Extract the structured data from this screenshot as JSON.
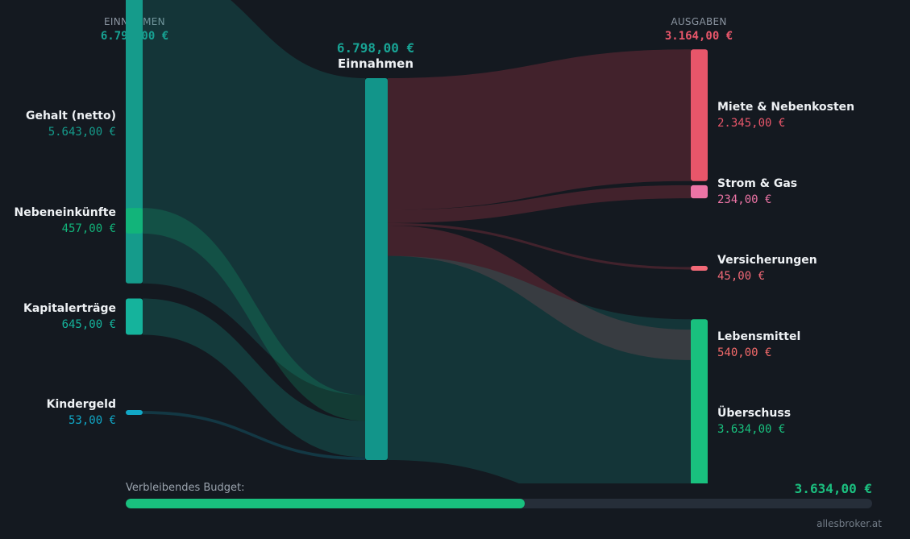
{
  "headers": {
    "income_caption": "EINNAHMEN",
    "income_total": "6.798,00 €",
    "expenses_caption": "AUSGABEN",
    "expenses_total": "3.164,00 €"
  },
  "center": {
    "amount": "6.798,00 €",
    "label": "Einnahmen"
  },
  "sources": [
    {
      "label": "Gehalt (netto)",
      "amount": "5.643,00 €",
      "value": 5643,
      "color": "#159b8b"
    },
    {
      "label": "Nebeneinkünfte",
      "amount": "457,00 €",
      "value": 457,
      "color": "#12b47a"
    },
    {
      "label": "Kapitalerträge",
      "amount": "645,00 €",
      "value": 645,
      "color": "#15b39c"
    },
    {
      "label": "Kindergeld",
      "amount": "53,00 €",
      "value": 53,
      "color": "#11a7c6"
    }
  ],
  "targets": [
    {
      "label": "Miete & Nebenkosten",
      "amount": "2.345,00 €",
      "value": 2345,
      "color": "#e8566a"
    },
    {
      "label": "Strom & Gas",
      "amount": "234,00 €",
      "value": 234,
      "color": "#ec74a5"
    },
    {
      "label": "Versicherungen",
      "amount": "45,00 €",
      "value": 45,
      "color": "#f26977"
    },
    {
      "label": "Lebensmittel",
      "amount": "540,00 €",
      "value": 540,
      "color": "#f36a6a"
    },
    {
      "label": "Überschuss",
      "amount": "3.634,00 €",
      "value": 3634,
      "color": "#19c07e"
    }
  ],
  "budget": {
    "label": "Verbleibendes Budget:",
    "amount": "3.634,00 €",
    "fraction": 0.5346
  },
  "watermark": "allesbroker.at",
  "chart_data": {
    "type": "sankey",
    "nodes": [
      "Gehalt (netto)",
      "Nebeneinkünfte",
      "Kapitalerträge",
      "Kindergeld",
      "Einnahmen",
      "Miete & Nebenkosten",
      "Strom & Gas",
      "Versicherungen",
      "Lebensmittel",
      "Überschuss"
    ],
    "links": [
      {
        "source": "Gehalt (netto)",
        "target": "Einnahmen",
        "value": 5643
      },
      {
        "source": "Nebeneinkünfte",
        "target": "Einnahmen",
        "value": 457
      },
      {
        "source": "Kapitalerträge",
        "target": "Einnahmen",
        "value": 645
      },
      {
        "source": "Kindergeld",
        "target": "Einnahmen",
        "value": 53
      },
      {
        "source": "Einnahmen",
        "target": "Miete & Nebenkosten",
        "value": 2345
      },
      {
        "source": "Einnahmen",
        "target": "Strom & Gas",
        "value": 234
      },
      {
        "source": "Einnahmen",
        "target": "Versicherungen",
        "value": 45
      },
      {
        "source": "Einnahmen",
        "target": "Lebensmittel",
        "value": 540
      },
      {
        "source": "Einnahmen",
        "target": "Überschuss",
        "value": 3634
      }
    ],
    "total_income": 6798,
    "total_expenses": 3164,
    "remaining_budget": 3634
  }
}
